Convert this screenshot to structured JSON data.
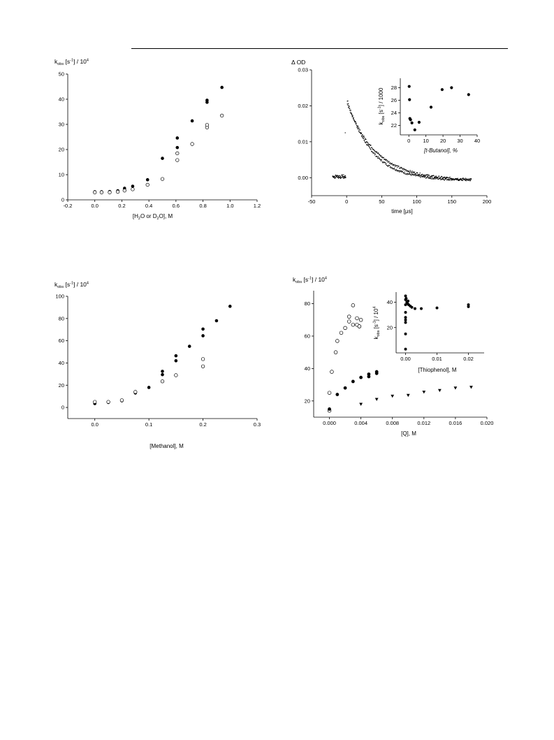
{
  "page": {
    "rule": true
  },
  "chart_data": [
    {
      "type": "scatter",
      "ylabel_main": "k",
      "ylabel_sub": "obs",
      "ylabel_rest": " [s",
      "ylabel_sup1": "-1",
      "ylabel_end": "] / 10",
      "ylabel_sup2": "4",
      "xlabel_parts": [
        "[H",
        "2",
        "O or D",
        "2",
        "O], M"
      ],
      "xlim": [
        -0.2,
        1.2
      ],
      "ylim": [
        0,
        50
      ],
      "xticks": [
        -0.2,
        0.0,
        0.2,
        0.4,
        0.6,
        0.8,
        1.0,
        1.2
      ],
      "xticklabels": [
        "-0.2",
        "0.0",
        "0.2",
        "0.4",
        "0.6",
        "0.8",
        "1.0",
        "1.2"
      ],
      "yticks": [
        0,
        10,
        20,
        30,
        40,
        50
      ],
      "yticklabels": [
        "0",
        "10",
        "20",
        "30",
        "40",
        "50"
      ],
      "series": [
        {
          "marker": "filled",
          "x": [
            0.0,
            0.05,
            0.11,
            0.17,
            0.22,
            0.28,
            0.39,
            0.5,
            0.61,
            0.61,
            0.72,
            0.83,
            0.83,
            0.94
          ],
          "y": [
            3.2,
            3.2,
            3.3,
            3.6,
            4.6,
            5.4,
            8.0,
            16.5,
            20.8,
            24.6,
            31.4,
            38.8,
            39.6,
            44.7
          ]
        },
        {
          "marker": "open",
          "x": [
            0.0,
            0.05,
            0.11,
            0.17,
            0.22,
            0.28,
            0.39,
            0.5,
            0.61,
            0.61,
            0.72,
            0.83,
            0.83,
            0.94
          ],
          "y": [
            3.0,
            3.0,
            3.0,
            3.2,
            3.7,
            4.2,
            6.0,
            8.3,
            15.8,
            18.5,
            22.2,
            28.8,
            29.8,
            33.5
          ]
        }
      ]
    },
    {
      "type": "scatter",
      "ylabel": "Δ OD",
      "xlabel_parts": [
        "time [",
        "μ",
        "s]"
      ],
      "xlim": [
        -50,
        200
      ],
      "ylim": [
        -0.005,
        0.03
      ],
      "xticks": [
        -50,
        0,
        50,
        100,
        150,
        200
      ],
      "xticklabels": [
        "-50",
        "0",
        "50",
        "100",
        "150",
        "200"
      ],
      "yticks": [
        0.0,
        0.01,
        0.02,
        0.03
      ],
      "yticklabels": [
        "0.00",
        "0.01",
        "0.02",
        "0.03"
      ],
      "traces": [
        {
          "baseline_from": -20,
          "baseline_to": -1,
          "baseline": 0.0004,
          "start": 1,
          "end": 178,
          "amp": 0.0215,
          "tau": 35
        },
        {
          "baseline_from": -20,
          "baseline_to": -1,
          "baseline": 0.0002,
          "start": 1,
          "end": 178,
          "amp": 0.0205,
          "tau": 42
        }
      ],
      "stray_point": {
        "x": -2,
        "y": 0.0125
      },
      "inset": {
        "ylabel_main": "k",
        "ylabel_sub": "obs",
        "ylabel_rest": " [s",
        "ylabel_sup1": "-1",
        "ylabel_end": "] / 1000",
        "xlabel": "[t-Butanol], %",
        "xlim": [
          -5,
          40
        ],
        "ylim": [
          20.5,
          29.5
        ],
        "xticks": [
          0,
          10,
          20,
          30,
          40
        ],
        "xticklabels": [
          "0",
          "10",
          "20",
          "30",
          "40"
        ],
        "yticks": [
          22,
          24,
          26,
          28
        ],
        "yticklabels": [
          "22",
          "24",
          "26",
          "28"
        ],
        "x": [
          0.2,
          0.4,
          0.6,
          1.0,
          1.8,
          3.5,
          6.0,
          13.0,
          19.5,
          25.0,
          35.0
        ],
        "y": [
          28.2,
          26.1,
          23.1,
          22.9,
          22.4,
          21.3,
          22.5,
          24.9,
          27.7,
          28.0,
          26.9
        ]
      }
    },
    {
      "type": "scatter",
      "ylabel_main": "k",
      "ylabel_sub": "obs",
      "ylabel_rest": " [s",
      "ylabel_sup1": "-1",
      "ylabel_end": "] / 10",
      "ylabel_sup2": "4",
      "xlabel": "[Methanol], M",
      "xlim": [
        -0.05,
        0.3
      ],
      "ylim": [
        -10,
        100
      ],
      "xticks": [
        0.0,
        0.1,
        0.2,
        0.3
      ],
      "xticklabels": [
        "0.0",
        "0.1",
        "0.2",
        "0.3"
      ],
      "yticks": [
        0,
        20,
        40,
        60,
        80,
        100
      ],
      "yticklabels": [
        "0",
        "20",
        "40",
        "60",
        "80",
        "100"
      ],
      "series": [
        {
          "marker": "filled",
          "x": [
            0.0,
            0.025,
            0.05,
            0.075,
            0.1,
            0.125,
            0.125,
            0.15,
            0.15,
            0.175,
            0.2,
            0.2,
            0.225,
            0.25
          ],
          "y": [
            3.5,
            4.5,
            6,
            13,
            18,
            29.5,
            32.5,
            42,
            46.5,
            55,
            64.5,
            70.5,
            78,
            91
          ]
        },
        {
          "marker": "open",
          "x": [
            0.0,
            0.025,
            0.05,
            0.075,
            0.125,
            0.15,
            0.2,
            0.2
          ],
          "y": [
            5,
            5,
            6.5,
            14,
            23.5,
            29,
            37,
            43.5
          ]
        }
      ]
    },
    {
      "type": "scatter",
      "ylabel_main": "k",
      "ylabel_sub": "obs",
      "ylabel_rest": " [s",
      "ylabel_sup1": "-1",
      "ylabel_end": "] / 10",
      "ylabel_sup2": "4",
      "xlabel": "[Q], M",
      "xlim": [
        -0.002,
        0.02
      ],
      "ylim": [
        10,
        88
      ],
      "xticks": [
        0.0,
        0.004,
        0.008,
        0.012,
        0.016,
        0.02
      ],
      "xticklabels": [
        "0.000",
        "0.004",
        "0.008",
        "0.012",
        "0.016",
        "0.020"
      ],
      "yticks": [
        20,
        40,
        60,
        80
      ],
      "yticklabels": [
        "20",
        "40",
        "60",
        "80"
      ],
      "series": [
        {
          "marker": "open",
          "x": [
            0.0,
            0.0,
            0.0003,
            0.0008,
            0.001,
            0.0015,
            0.002,
            0.0025,
            0.003,
            0.003,
            0.0035,
            0.0038,
            0.004
          ],
          "y": [
            14,
            25,
            38,
            50,
            57,
            62,
            65,
            69,
            67,
            79,
            71,
            66,
            70
          ]
        },
        {
          "marker": "filled",
          "x": [
            0.0,
            0.001,
            0.002,
            0.003,
            0.004,
            0.005,
            0.005,
            0.006,
            0.006
          ],
          "y": [
            15,
            24,
            28,
            32,
            34.5,
            35,
            36.5,
            37,
            38
          ]
        },
        {
          "marker": "triangle",
          "x": [
            0.004,
            0.006,
            0.008,
            0.01,
            0.012,
            0.014,
            0.016,
            0.018
          ],
          "y": [
            18,
            21,
            23,
            23.5,
            25.5,
            26.5,
            28,
            28.5
          ]
        },
        {
          "marker": "open",
          "x": [
            0.0025,
            0.0035,
            0.0038
          ],
          "y": [
            72,
            67,
            66
          ]
        }
      ],
      "inset": {
        "ylabel_main": "k",
        "ylabel_sub": "obs",
        "ylabel_rest": " [s",
        "ylabel_sup1": "-1",
        "ylabel_end": "] / 10",
        "ylabel_sup2": "4",
        "xlabel": "[Thiophenol], M",
        "xlim": [
          -0.003,
          0.025
        ],
        "ylim": [
          0,
          48
        ],
        "xticks": [
          0.0,
          0.01,
          0.02
        ],
        "xticklabels": [
          "0.00",
          "0.01",
          "0.02"
        ],
        "yticks": [
          20,
          40
        ],
        "yticklabels": [
          "20",
          "40"
        ],
        "x": [
          0.0,
          0.0,
          0.0,
          0.0,
          0.0,
          0.0,
          0.0,
          0.0,
          0.0,
          0.0002,
          0.0004,
          0.0006,
          0.0008,
          0.001,
          0.0015,
          0.002,
          0.003,
          0.005,
          0.01,
          0.02,
          0.02
        ],
        "y": [
          3,
          15,
          24,
          26,
          28,
          32,
          38,
          42,
          45,
          43,
          40,
          39,
          41,
          38,
          37,
          36,
          35,
          35,
          35.5,
          36.5,
          38
        ]
      }
    }
  ]
}
